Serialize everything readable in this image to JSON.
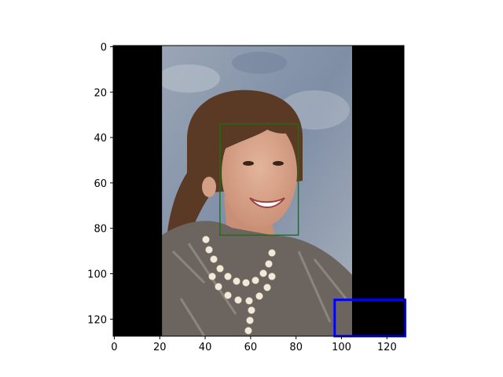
{
  "plot": {
    "image_size": [
      128,
      128
    ],
    "x_ticks": [
      0,
      20,
      40,
      60,
      80,
      100,
      120
    ],
    "y_ticks": [
      0,
      20,
      40,
      60,
      80,
      100,
      120
    ],
    "content_region": {
      "x0": 21,
      "x1": 105
    },
    "face_box": {
      "x0": 46.5,
      "y0": 34,
      "x1": 81,
      "y1": 83,
      "color": "#008000"
    },
    "highlight_box": {
      "x0": 97,
      "y0": 111.5,
      "x1": 128,
      "y1": 127.5,
      "color": "#0000ff"
    },
    "colors": {
      "background_bars": "#000000",
      "sky": "#8c99ab",
      "hair": "#5a3a24",
      "skin": "#d9a58b",
      "jacket": "#6c655f",
      "pearls": "#f1ead8"
    }
  }
}
